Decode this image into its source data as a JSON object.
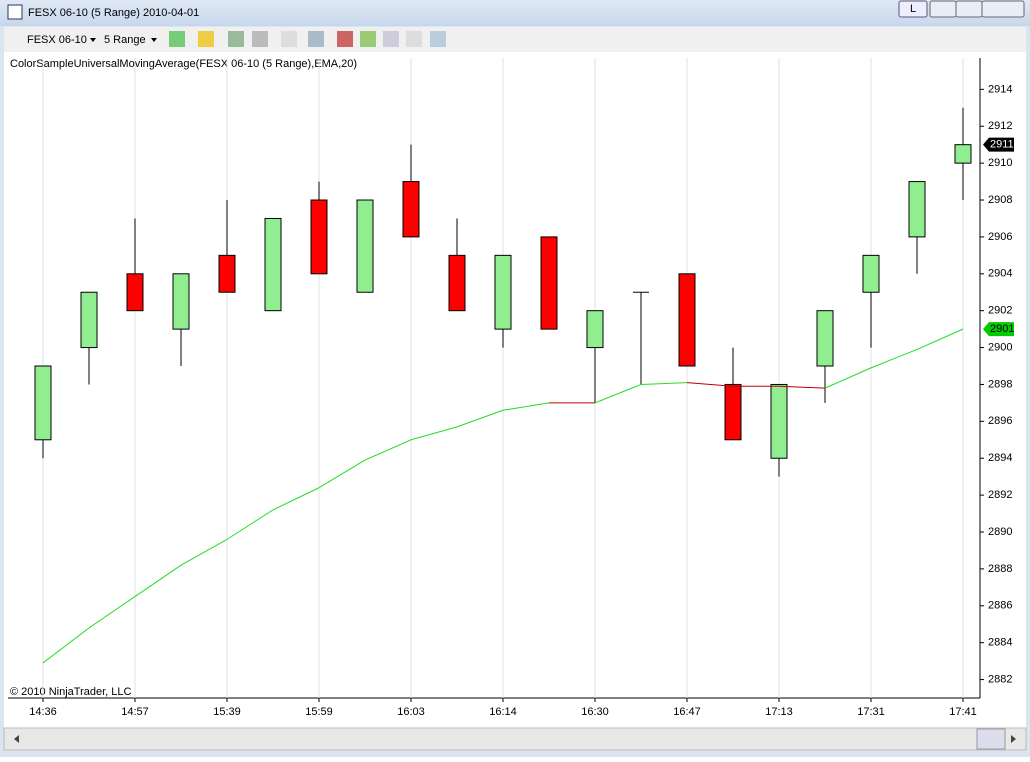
{
  "window": {
    "title": "FESX 06-10 (5 Range)  2010-04-01",
    "button": "L"
  },
  "toolbar": {
    "instrument": "FESX 06-10",
    "period": "5 Range"
  },
  "indicator_label": "ColorSampleUniversalMovingAverage(FESX 06-10 (5 Range),EMA,20)",
  "copyright": "© 2010 NinjaTrader, LLC",
  "chart_data": {
    "type": "candlestick",
    "categories": [
      "14:36",
      null,
      "14:57",
      null,
      "15:39",
      null,
      "15:59",
      null,
      "16:03",
      null,
      "16:14",
      null,
      "16:30",
      null,
      "16:47",
      null,
      "17:13",
      null,
      "17:31",
      null,
      "17:41"
    ],
    "open": [
      2895,
      2900,
      2904,
      2901,
      2905,
      2902,
      2908,
      2903,
      2909,
      2905,
      2901,
      2906,
      2900,
      2903,
      2904,
      2898,
      2894,
      2899,
      2903,
      2906,
      2910
    ],
    "high": [
      2899,
      2903,
      2907,
      2904,
      2908,
      2907,
      2909,
      2908,
      2911,
      2907,
      2905,
      2906,
      2902,
      2903,
      2904,
      2900,
      2898,
      2902,
      2905,
      2909,
      2913
    ],
    "low": [
      2894,
      2898,
      2902,
      2899,
      2903,
      2902,
      2904,
      2903,
      2906,
      2902,
      2900,
      2901,
      2897,
      2898,
      2899,
      2895,
      2893,
      2897,
      2900,
      2904,
      2908
    ],
    "close": [
      2899,
      2903,
      2902,
      2904,
      2903,
      2907,
      2904,
      2908,
      2906,
      2902,
      2905,
      2901,
      2902,
      2903,
      2899,
      2895,
      2898,
      2902,
      2905,
      2909,
      2911
    ],
    "up_color": "#90ee90",
    "down_color": "#ff0000",
    "series": [
      {
        "name": "EMA",
        "color": "#22dd22",
        "down_color": "#c00000",
        "values": [
          2882.9,
          2884.8,
          2886.5,
          2888.2,
          2889.6,
          2891.2,
          2892.4,
          2893.9,
          2895.0,
          2895.7,
          2896.6,
          2897.0,
          2897.0,
          2898.0,
          2898.1,
          2897.9,
          2897.9,
          2897.8,
          2898.9,
          2899.9,
          2901.0
        ]
      }
    ],
    "ylim": [
      2881,
      2915.7
    ],
    "yticks": [
      2882,
      2884,
      2886,
      2888,
      2890,
      2892,
      2894,
      2896,
      2898,
      2900,
      2902,
      2904,
      2906,
      2908,
      2910,
      2912,
      2914
    ],
    "markers": [
      {
        "value": 2911,
        "color": "#000000"
      },
      {
        "value": 2901,
        "color": "#00cc00"
      }
    ],
    "grid": true
  }
}
